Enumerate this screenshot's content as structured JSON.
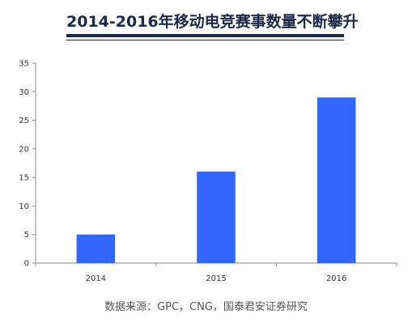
{
  "header": {
    "title": "2014-2016年移动电竞赛事数量不断攀升"
  },
  "footer": {
    "source": "数据来源：GPC，CNG，国泰君安证券研究"
  },
  "colors": {
    "bar": "#3366ff",
    "title": "#1b2a4a",
    "axis": "#888888"
  },
  "chart_data": {
    "type": "bar",
    "title": "2014-2016年移动电竞赛事数量不断攀升",
    "categories": [
      "2014",
      "2015",
      "2016"
    ],
    "values": [
      5,
      16,
      29
    ],
    "ylim": [
      0,
      35
    ],
    "yticks": [
      0,
      5,
      10,
      15,
      20,
      25,
      30,
      35
    ],
    "xlabel": "",
    "ylabel": "",
    "grid": false,
    "legend": "none"
  }
}
